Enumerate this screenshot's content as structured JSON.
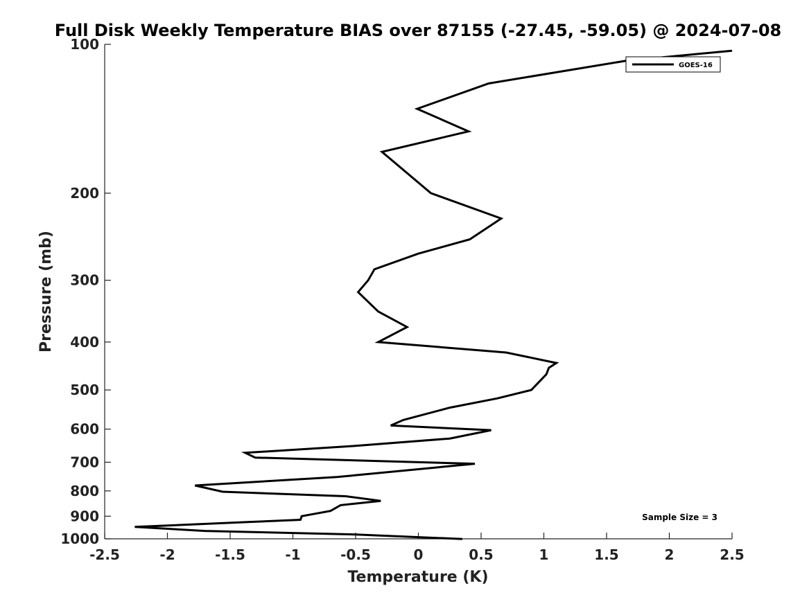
{
  "chart_data": {
    "type": "line",
    "title": "Full Disk Weekly Temperature BIAS over 87155 (-27.45, -59.05) @ 2024-07-08",
    "xlabel": "Temperature (K)",
    "ylabel": "Pressure (mb)",
    "xlim": [
      -2.5,
      2.5
    ],
    "ylim": [
      100,
      1000
    ],
    "y_scale": "log",
    "y_reversed": true,
    "x_ticks": [
      {
        "value": -2.5,
        "label": "-2.5"
      },
      {
        "value": -2,
        "label": "-2"
      },
      {
        "value": -1.5,
        "label": "-1.5"
      },
      {
        "value": -1,
        "label": "-1"
      },
      {
        "value": -0.5,
        "label": "-0.5"
      },
      {
        "value": 0,
        "label": "0"
      },
      {
        "value": 0.5,
        "label": "0.5"
      },
      {
        "value": 1,
        "label": "1"
      },
      {
        "value": 1.5,
        "label": "1.5"
      },
      {
        "value": 2,
        "label": "2"
      },
      {
        "value": 2.5,
        "label": "2.5"
      }
    ],
    "y_ticks": [
      {
        "value": 100,
        "label": "100"
      },
      {
        "value": 200,
        "label": "200"
      },
      {
        "value": 300,
        "label": "300"
      },
      {
        "value": 400,
        "label": "400"
      },
      {
        "value": 500,
        "label": "500"
      },
      {
        "value": 600,
        "label": "600"
      },
      {
        "value": 700,
        "label": "700"
      },
      {
        "value": 800,
        "label": "800"
      },
      {
        "value": 900,
        "label": "900"
      },
      {
        "value": 1000,
        "label": "1000"
      }
    ],
    "grid": false,
    "legend_position": "top-right",
    "annotation": "Sample Size = 3",
    "series": [
      {
        "name": "GOES-16",
        "color": "#000000",
        "points": [
          {
            "x": 2.5,
            "y": 103
          },
          {
            "x": 1.65,
            "y": 108
          },
          {
            "x": 0.56,
            "y": 120
          },
          {
            "x": -0.01,
            "y": 135
          },
          {
            "x": 0.4,
            "y": 150
          },
          {
            "x": -0.29,
            "y": 165
          },
          {
            "x": 0.1,
            "y": 200
          },
          {
            "x": 0.66,
            "y": 225
          },
          {
            "x": 0.41,
            "y": 248
          },
          {
            "x": 0.0,
            "y": 265
          },
          {
            "x": -0.35,
            "y": 285
          },
          {
            "x": -0.4,
            "y": 300
          },
          {
            "x": -0.48,
            "y": 317
          },
          {
            "x": -0.32,
            "y": 347
          },
          {
            "x": -0.09,
            "y": 373
          },
          {
            "x": -0.32,
            "y": 400
          },
          {
            "x": 0.7,
            "y": 420
          },
          {
            "x": 1.1,
            "y": 441
          },
          {
            "x": 1.04,
            "y": 451
          },
          {
            "x": 1.02,
            "y": 465
          },
          {
            "x": 0.9,
            "y": 500
          },
          {
            "x": 0.63,
            "y": 520
          },
          {
            "x": 0.25,
            "y": 543
          },
          {
            "x": -0.12,
            "y": 575
          },
          {
            "x": -0.22,
            "y": 590
          },
          {
            "x": 0.58,
            "y": 603
          },
          {
            "x": 0.25,
            "y": 627
          },
          {
            "x": -0.55,
            "y": 650
          },
          {
            "x": -1.38,
            "y": 670
          },
          {
            "x": -1.3,
            "y": 685
          },
          {
            "x": 0.45,
            "y": 705
          },
          {
            "x": -0.65,
            "y": 750
          },
          {
            "x": -1.78,
            "y": 780
          },
          {
            "x": -1.56,
            "y": 803
          },
          {
            "x": -0.58,
            "y": 820
          },
          {
            "x": -0.3,
            "y": 838
          },
          {
            "x": -0.62,
            "y": 855
          },
          {
            "x": -0.7,
            "y": 878
          },
          {
            "x": -0.93,
            "y": 900
          },
          {
            "x": -0.94,
            "y": 915
          },
          {
            "x": -1.36,
            "y": 925
          },
          {
            "x": -2.26,
            "y": 946
          },
          {
            "x": -1.7,
            "y": 964
          },
          {
            "x": -0.5,
            "y": 980
          },
          {
            "x": 0.35,
            "y": 1001
          }
        ]
      }
    ]
  }
}
